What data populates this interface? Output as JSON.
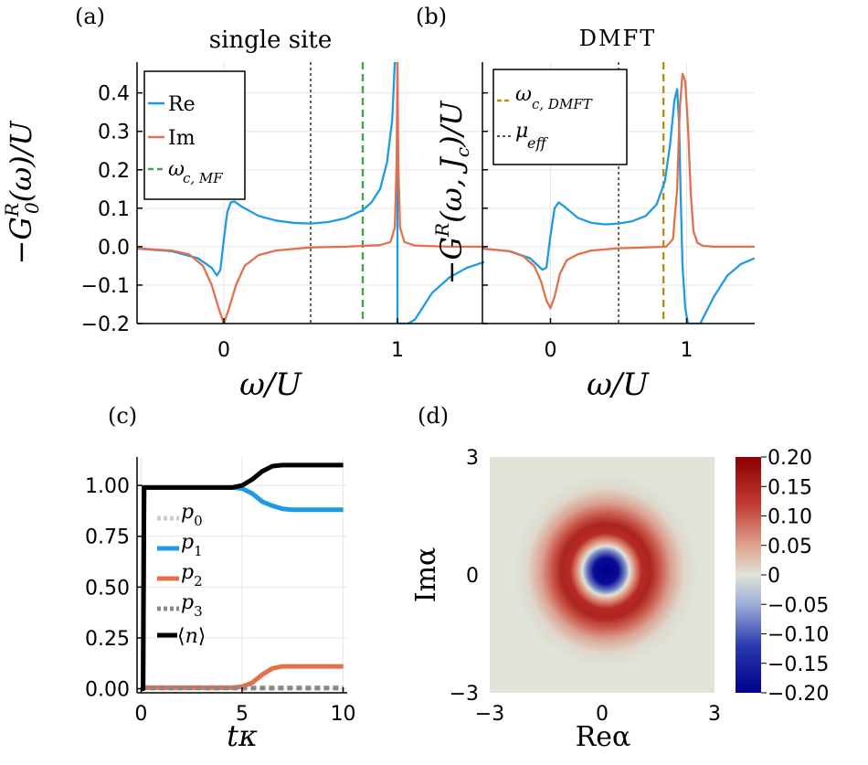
{
  "figure": {
    "panel_labels": [
      "(a)",
      "(b)",
      "(c)",
      "(d)"
    ]
  },
  "colors": {
    "re": "#1f9ae4",
    "im": "#e3704a",
    "wc_mf": "#3aa843",
    "wc_dmft": "#b8900d",
    "mu_eff": "#555555",
    "p0": "#cccccc",
    "p1": "#1f9ae4",
    "p2": "#e3704a",
    "p3": "#888888",
    "n": "#000000",
    "grid": "#e6e6e6",
    "cmap_low": "#00008b",
    "cmap_mid": "#dfe3d8",
    "cmap_high": "#8b0000"
  },
  "chart_data": [
    {
      "id": "a",
      "type": "line",
      "title": "single site",
      "xlabel": "ω/U",
      "ylabel": "−G₀ᴿ(ω)/U",
      "xlim": [
        -0.5,
        1.5
      ],
      "ylim": [
        -0.2,
        0.48
      ],
      "xticks": [
        0,
        1
      ],
      "xtick_labels": [
        "0",
        "1"
      ],
      "yticks": [
        -0.2,
        -0.1,
        0.0,
        0.1,
        0.2,
        0.3,
        0.4
      ],
      "ytick_labels": [
        "−0.2",
        "−0.1",
        "0.0",
        "0.1",
        "0.2",
        "0.3",
        "0.4"
      ],
      "vlines": [
        {
          "name": "mu",
          "x": 0.5,
          "style": "dotted",
          "color": "#555555"
        },
        {
          "name": "wc_mf",
          "x": 0.8,
          "style": "dashed",
          "color": "#3aa843"
        }
      ],
      "legend": {
        "position": "top-left",
        "entries": [
          "Re",
          "Im",
          "ω_c,MF"
        ]
      },
      "series": [
        {
          "name": "Re",
          "x": [
            -0.5,
            -0.3,
            -0.15,
            -0.07,
            -0.04,
            -0.02,
            0.0,
            0.02,
            0.04,
            0.06,
            0.1,
            0.2,
            0.3,
            0.4,
            0.5,
            0.6,
            0.7,
            0.8,
            0.85,
            0.9,
            0.94,
            0.97,
            0.985,
            0.995,
            1.0,
            1.0,
            1.01,
            1.03,
            1.06,
            1.1,
            1.2,
            1.3,
            1.4,
            1.5
          ],
          "y": [
            -0.005,
            -0.012,
            -0.03,
            -0.055,
            -0.075,
            -0.06,
            0.02,
            0.09,
            0.115,
            0.118,
            0.105,
            0.08,
            0.068,
            0.062,
            0.06,
            0.064,
            0.074,
            0.095,
            0.115,
            0.15,
            0.22,
            0.33,
            0.48,
            0.48,
            0.48,
            -0.2,
            -0.2,
            -0.2,
            -0.2,
            -0.19,
            -0.12,
            -0.08,
            -0.055,
            -0.04
          ]
        },
        {
          "name": "Im",
          "x": [
            -0.5,
            -0.3,
            -0.2,
            -0.12,
            -0.07,
            -0.03,
            0.0,
            0.03,
            0.07,
            0.12,
            0.2,
            0.3,
            0.5,
            0.7,
            0.9,
            0.96,
            0.985,
            0.995,
            1.0,
            1.005,
            1.015,
            1.04,
            1.1,
            1.3,
            1.5
          ],
          "y": [
            -0.004,
            -0.01,
            -0.02,
            -0.05,
            -0.1,
            -0.16,
            -0.2,
            -0.16,
            -0.1,
            -0.05,
            -0.022,
            -0.01,
            -0.002,
            0.0,
            0.004,
            0.012,
            0.05,
            0.22,
            0.48,
            0.22,
            0.05,
            0.012,
            0.003,
            0.0,
            0.0
          ]
        }
      ]
    },
    {
      "id": "b",
      "type": "line",
      "title": "DMFT",
      "xlabel": "ω/U",
      "ylabel": "−Gᴿ(ω, J_c)/U",
      "xlim": [
        -0.5,
        1.5
      ],
      "ylim": [
        -0.2,
        0.48
      ],
      "xticks": [
        0,
        1
      ],
      "xtick_labels": [
        "0",
        "1"
      ],
      "vlines": [
        {
          "name": "mu_eff",
          "x": 0.5,
          "style": "dotted",
          "color": "#555555"
        },
        {
          "name": "wc_dmft",
          "x": 0.83,
          "style": "dashed",
          "color": "#b8900d"
        }
      ],
      "legend": {
        "position": "top-left",
        "entries": [
          "ω_c,DMFT",
          "μ_eff"
        ]
      },
      "series": [
        {
          "name": "Re",
          "x": [
            -0.5,
            -0.3,
            -0.15,
            -0.06,
            -0.03,
            0.0,
            0.03,
            0.06,
            0.1,
            0.2,
            0.3,
            0.4,
            0.5,
            0.6,
            0.7,
            0.78,
            0.84,
            0.88,
            0.91,
            0.93,
            0.945,
            0.955,
            0.97,
            0.99,
            1.01,
            1.03,
            1.05,
            1.1,
            1.2,
            1.3,
            1.4,
            1.5
          ],
          "y": [
            -0.005,
            -0.012,
            -0.03,
            -0.06,
            -0.055,
            0.03,
            0.1,
            0.115,
            0.105,
            0.075,
            0.062,
            0.058,
            0.06,
            0.066,
            0.08,
            0.11,
            0.17,
            0.27,
            0.38,
            0.41,
            0.32,
            0.15,
            -0.05,
            -0.16,
            -0.2,
            -0.2,
            -0.2,
            -0.2,
            -0.13,
            -0.075,
            -0.045,
            -0.03
          ]
        },
        {
          "name": "Im",
          "x": [
            -0.5,
            -0.3,
            -0.2,
            -0.12,
            -0.07,
            -0.03,
            0.0,
            0.03,
            0.07,
            0.12,
            0.2,
            0.3,
            0.5,
            0.7,
            0.85,
            0.9,
            0.93,
            0.95,
            0.97,
            0.99,
            1.01,
            1.03,
            1.05,
            1.08,
            1.12,
            1.2,
            1.5
          ],
          "y": [
            -0.005,
            -0.012,
            -0.025,
            -0.05,
            -0.09,
            -0.14,
            -0.16,
            -0.13,
            -0.07,
            -0.035,
            -0.02,
            -0.01,
            -0.004,
            -0.002,
            0.0,
            0.02,
            0.15,
            0.36,
            0.45,
            0.43,
            0.31,
            0.14,
            0.04,
            0.01,
            0.002,
            0.0,
            0.0
          ]
        }
      ]
    },
    {
      "id": "c",
      "type": "line",
      "xlabel": "tκ",
      "ylabel": "",
      "xlim": [
        -0.2,
        10.2
      ],
      "ylim": [
        -0.02,
        1.14
      ],
      "xticks": [
        0,
        5,
        10
      ],
      "xtick_labels": [
        "0",
        "5",
        "10"
      ],
      "yticks": [
        0.0,
        0.25,
        0.5,
        0.75,
        1.0
      ],
      "ytick_labels": [
        "0.00",
        "0.25",
        "0.50",
        "0.75",
        "1.00"
      ],
      "legend": {
        "position": "left",
        "entries": [
          "p₀",
          "p₁",
          "p₂",
          "p₃",
          "⟨n⟩"
        ]
      },
      "series": [
        {
          "name": "p0",
          "x": [
            0,
            10
          ],
          "y": [
            0.005,
            0.005
          ]
        },
        {
          "name": "p1",
          "x": [
            0,
            0.1,
            0.15,
            4.5,
            5,
            5.5,
            6,
            6.5,
            7,
            7.5,
            8,
            10
          ],
          "y": [
            0,
            0,
            0.99,
            0.99,
            0.985,
            0.96,
            0.92,
            0.9,
            0.885,
            0.88,
            0.88,
            0.88
          ]
        },
        {
          "name": "p2",
          "x": [
            0,
            4.5,
            5,
            5.5,
            6,
            6.5,
            7,
            7.5,
            8,
            10
          ],
          "y": [
            0.005,
            0.005,
            0.01,
            0.03,
            0.07,
            0.1,
            0.11,
            0.11,
            0.11,
            0.11
          ]
        },
        {
          "name": "p3",
          "x": [
            0,
            10
          ],
          "y": [
            0.003,
            0.003
          ]
        },
        {
          "name": "n",
          "x": [
            0,
            0.1,
            0.15,
            4.5,
            5,
            5.5,
            6,
            6.5,
            7,
            7.5,
            8,
            10
          ],
          "y": [
            0,
            0,
            0.99,
            0.99,
            1.0,
            1.03,
            1.07,
            1.095,
            1.1,
            1.1,
            1.1,
            1.1
          ]
        }
      ]
    },
    {
      "id": "d",
      "type": "heatmap",
      "xlabel": "Re α",
      "ylabel": "Im α",
      "xlim": [
        -3,
        3
      ],
      "ylim": [
        -3,
        3
      ],
      "xticks": [
        -3,
        0,
        3
      ],
      "xtick_labels": [
        "−3",
        "0",
        "3"
      ],
      "yticks": [
        -3,
        0,
        3
      ],
      "ytick_labels": [
        "−3",
        "0",
        "3"
      ],
      "colorbar": {
        "range": [
          -0.2,
          0.2
        ],
        "ticks": [
          0.2,
          0.15,
          0.1,
          0.05,
          0,
          -0.05,
          -0.1,
          -0.15,
          -0.2
        ],
        "tick_labels": [
          "0.20",
          "0.15",
          "0.10",
          "0.05",
          "0",
          "−0.05",
          "−0.10",
          "−0.15",
          "−0.20"
        ]
      },
      "center": [
        0.1,
        0.1
      ],
      "features": [
        {
          "name": "negative core",
          "radius": 0,
          "value": -0.2
        },
        {
          "name": "positive ring",
          "radius": 1.1,
          "value": 0.15
        }
      ]
    }
  ],
  "labels": {
    "a_legend_re": "Re",
    "a_legend_im": "Im",
    "wc_mf_main": "ω",
    "wc_mf_sub": "c, MF",
    "wc_dmft_main": "ω",
    "wc_dmft_sub": "c, DMFT",
    "mu_main": "μ",
    "mu_sub": "eff",
    "a_title": "single site",
    "b_title": "DMFT",
    "a_xlabel": "ω/U",
    "b_xlabel": "ω/U",
    "c_xlabel": "tκ",
    "d_xlabel": "Reα",
    "d_ylabel": "Imα"
  }
}
